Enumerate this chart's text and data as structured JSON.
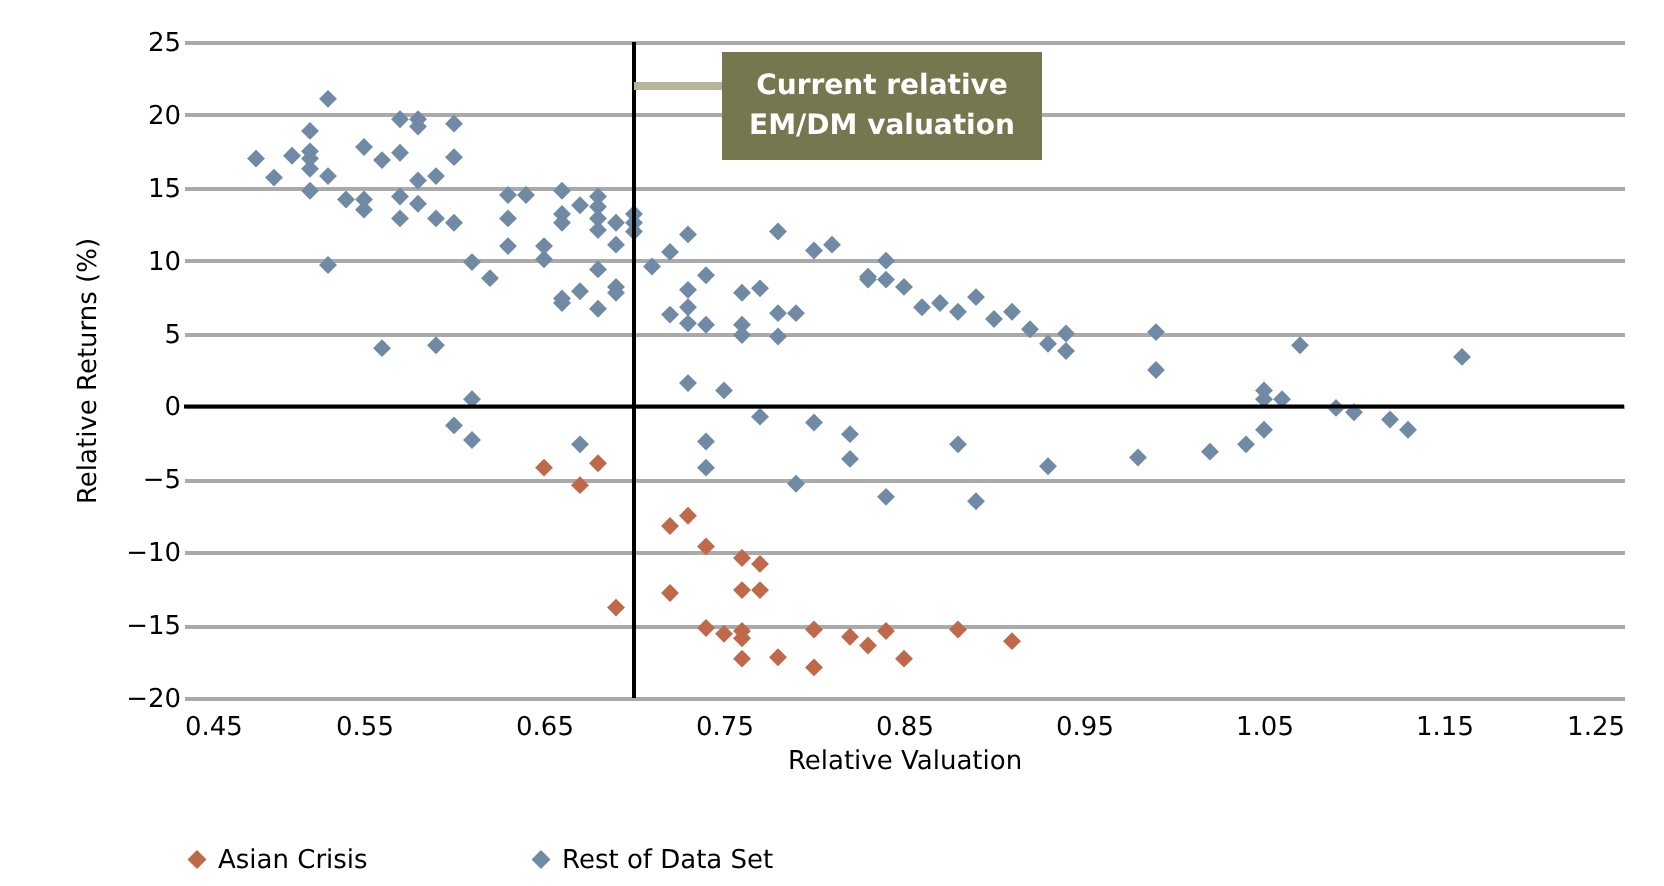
{
  "chart_data": {
    "type": "scatter",
    "xlabel": "Relative Valuation",
    "ylabel": "Relative Returns (%)",
    "xlim": [
      0.45,
      1.25
    ],
    "xticks": [
      0.45,
      0.55,
      0.65,
      0.75,
      0.85,
      0.95,
      1.05,
      1.15,
      1.25
    ],
    "ylim": [
      -20,
      25
    ],
    "yticks": [
      -20,
      -15,
      -10,
      -5,
      0,
      5,
      10,
      15,
      20,
      25
    ],
    "grid": "y",
    "legend": "bottom",
    "marker": "diamond",
    "ref_lines": [
      {
        "axis": "x",
        "value": 0.7,
        "label": "Current relative EM/DM valuation",
        "color": "#000000"
      },
      {
        "axis": "y",
        "value": 0,
        "color": "#000000"
      }
    ],
    "series": [
      {
        "name": "Asian Crisis",
        "color": "#c0694a",
        "x": [
          0.65,
          0.67,
          0.68,
          0.69,
          0.72,
          0.73,
          0.72,
          0.74,
          0.76,
          0.77,
          0.76,
          0.77,
          0.74,
          0.75,
          0.76,
          0.76,
          0.76,
          0.78,
          0.8,
          0.8,
          0.82,
          0.83,
          0.84,
          0.85,
          0.88,
          0.91
        ],
        "values": [
          -4.2,
          -5.4,
          -3.9,
          -13.8,
          -8.2,
          -7.5,
          -12.8,
          -9.6,
          -10.4,
          -10.8,
          -12.6,
          -12.6,
          -15.2,
          -15.6,
          -15.4,
          -15.9,
          -17.3,
          -17.2,
          -15.3,
          -17.9,
          -15.8,
          -16.4,
          -15.4,
          -17.3,
          -15.3,
          -16.1
        ]
      },
      {
        "name": "Rest of Data Set",
        "color": "#7089a5",
        "x": [
          0.49,
          0.5,
          0.51,
          0.52,
          0.52,
          0.52,
          0.52,
          0.52,
          0.53,
          0.53,
          0.53,
          0.54,
          0.55,
          0.55,
          0.55,
          0.56,
          0.56,
          0.57,
          0.57,
          0.57,
          0.57,
          0.58,
          0.58,
          0.58,
          0.58,
          0.59,
          0.59,
          0.59,
          0.6,
          0.6,
          0.6,
          0.6,
          0.61,
          0.61,
          0.61,
          0.62,
          0.63,
          0.63,
          0.63,
          0.64,
          0.65,
          0.65,
          0.66,
          0.66,
          0.66,
          0.66,
          0.66,
          0.67,
          0.67,
          0.67,
          0.68,
          0.68,
          0.68,
          0.68,
          0.68,
          0.68,
          0.69,
          0.69,
          0.69,
          0.69,
          0.7,
          0.7,
          0.7,
          0.71,
          0.72,
          0.73,
          0.72,
          0.73,
          0.73,
          0.73,
          0.74,
          0.74,
          0.73,
          0.75,
          0.76,
          0.76,
          0.76,
          0.77,
          0.78,
          0.78,
          0.78,
          0.79,
          0.8,
          0.81,
          0.83,
          0.83,
          0.84,
          0.84,
          0.85,
          0.86,
          0.87,
          0.88,
          0.89,
          0.9,
          0.91,
          0.92,
          0.93,
          0.94,
          0.94,
          0.99,
          0.99,
          0.77,
          0.74,
          0.8,
          0.82,
          0.88,
          0.74,
          0.82,
          0.79,
          0.84,
          0.89,
          0.93,
          0.98,
          1.02,
          1.04,
          1.05,
          1.05,
          1.05,
          1.06,
          1.07,
          1.09,
          1.1,
          1.12,
          1.13,
          1.16
        ],
        "values": [
          17.0,
          15.7,
          17.2,
          18.9,
          17.5,
          17.0,
          16.3,
          14.8,
          21.1,
          15.8,
          9.7,
          14.2,
          17.8,
          14.2,
          13.5,
          16.9,
          4.0,
          19.7,
          17.4,
          14.4,
          12.9,
          19.7,
          19.2,
          15.5,
          13.9,
          15.8,
          12.9,
          4.2,
          19.4,
          17.1,
          12.6,
          -1.3,
          9.9,
          0.5,
          -2.3,
          8.8,
          14.5,
          12.9,
          11.0,
          14.5,
          11.0,
          10.1,
          14.8,
          13.2,
          12.6,
          7.4,
          7.1,
          13.8,
          7.9,
          -2.6,
          14.4,
          13.7,
          12.9,
          12.1,
          9.4,
          6.7,
          12.6,
          11.1,
          8.2,
          7.8,
          13.2,
          12.6,
          12.0,
          9.6,
          10.6,
          11.8,
          6.3,
          8.0,
          6.8,
          5.7,
          9.0,
          5.6,
          1.6,
          1.1,
          7.8,
          5.6,
          4.9,
          8.1,
          12.0,
          6.4,
          4.8,
          6.4,
          10.7,
          11.1,
          8.9,
          8.7,
          10.0,
          8.7,
          8.2,
          6.8,
          7.1,
          6.5,
          7.5,
          6.0,
          6.5,
          5.3,
          4.3,
          5.0,
          3.8,
          5.1,
          2.5,
          -0.7,
          -2.4,
          -1.1,
          -1.9,
          -2.6,
          -4.2,
          -3.6,
          -5.3,
          -6.2,
          -6.5,
          -4.1,
          -3.5,
          -3.1,
          -2.6,
          1.1,
          0.5,
          -1.6,
          0.5,
          4.2,
          -0.1,
          -0.4,
          -0.9,
          -1.6,
          3.4
        ]
      }
    ]
  }
}
